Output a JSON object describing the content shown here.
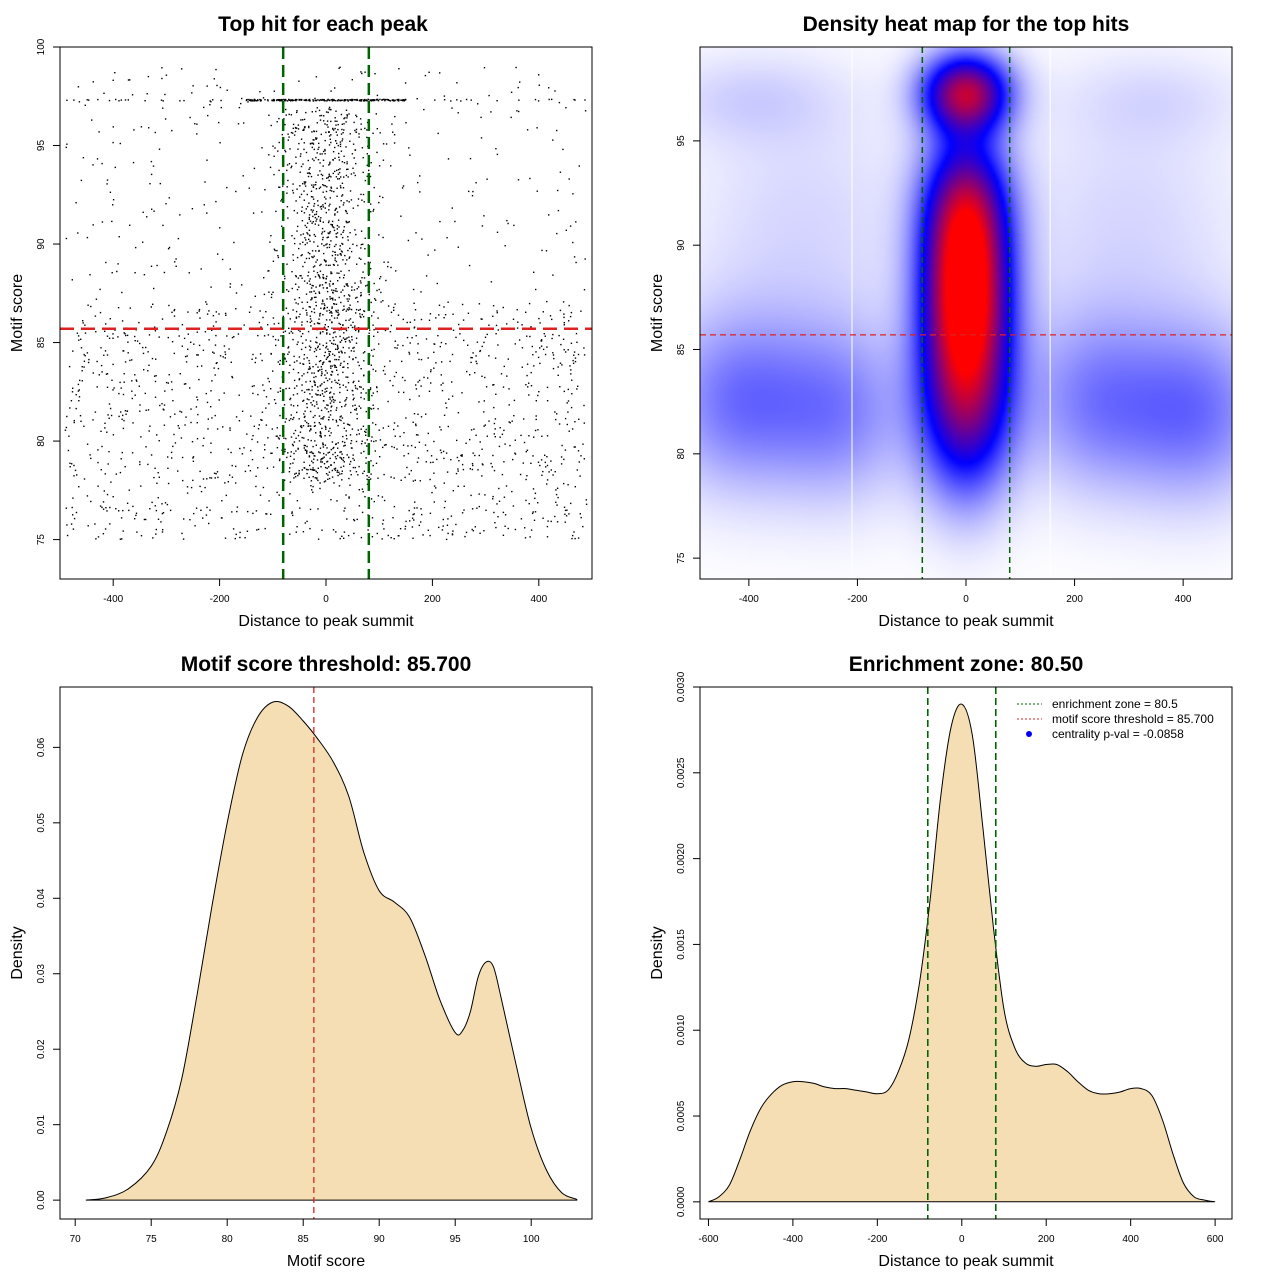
{
  "colors": {
    "threshold_line": "#dd2222",
    "zone_line": "#006400",
    "density_fill": "#f5deb3",
    "heat_low": "#ffffff",
    "heat_mid": "#0000ff",
    "heat_high": "#ff0000",
    "points": "#000000"
  },
  "chart_data": [
    {
      "id": "scatter",
      "type": "scatter",
      "title": "Top hit for each peak",
      "xlabel": "Distance to peak summit",
      "ylabel": "Motif score",
      "xlim": [
        -500,
        500
      ],
      "ylim": [
        73,
        100
      ],
      "xticks": [
        -400,
        -200,
        0,
        200,
        400
      ],
      "yticks": [
        75,
        80,
        85,
        90,
        95,
        100
      ],
      "hlines": [
        85.7
      ],
      "vlines": [
        -80.5,
        80.5
      ],
      "point_groups": [
        {
          "x_range": [
            -490,
            490
          ],
          "y_range": [
            75,
            87
          ],
          "n": 1400
        },
        {
          "x_range": [
            -490,
            490
          ],
          "y_range": [
            87,
            99
          ],
          "n": 350
        },
        {
          "x_center": 0,
          "x_sd": 45,
          "y_range": [
            78,
            97
          ],
          "n": 1300
        },
        {
          "x_range": [
            -150,
            150
          ],
          "y_const": 97.3,
          "n": 220
        },
        {
          "x_range": [
            -490,
            490
          ],
          "y_const": 97.3,
          "n": 50
        }
      ]
    },
    {
      "id": "heatmap",
      "type": "heatmap",
      "title": "Density heat map for the top hits",
      "xlabel": "Distance to peak summit",
      "ylabel": "Motif score",
      "xlim": [
        -490,
        490
      ],
      "ylim": [
        74,
        99.5
      ],
      "xticks": [
        -400,
        -200,
        0,
        200,
        400
      ],
      "yticks": [
        75,
        80,
        85,
        90,
        95
      ],
      "hlines": [
        85.7
      ],
      "vlines": [
        -80.5,
        80.5
      ],
      "white_vlines": [
        -210,
        155
      ],
      "blobs": [
        {
          "x": 0,
          "y": 87.5,
          "sx": 55,
          "sy": 3.2,
          "w": 1.0
        },
        {
          "x": 0,
          "y": 97.3,
          "sx": 55,
          "sy": 1.3,
          "w": 0.8
        },
        {
          "x": 0,
          "y": 92,
          "sx": 55,
          "sy": 2.5,
          "w": 0.55
        },
        {
          "x": 0,
          "y": 82,
          "sx": 60,
          "sy": 3.0,
          "w": 0.55
        },
        {
          "x": -420,
          "y": 82.5,
          "sx": 100,
          "sy": 3.0,
          "w": 0.24
        },
        {
          "x": -230,
          "y": 82.0,
          "sx": 90,
          "sy": 3.0,
          "w": 0.2
        },
        {
          "x": 230,
          "y": 82.5,
          "sx": 90,
          "sy": 3.0,
          "w": 0.2
        },
        {
          "x": 420,
          "y": 82.0,
          "sx": 100,
          "sy": 3.0,
          "w": 0.25
        },
        {
          "x": -300,
          "y": 91.0,
          "sx": 150,
          "sy": 4.5,
          "w": 0.07
        },
        {
          "x": 300,
          "y": 91.0,
          "sx": 150,
          "sy": 4.5,
          "w": 0.07
        },
        {
          "x": -400,
          "y": 97.0,
          "sx": 120,
          "sy": 1.5,
          "w": 0.07
        },
        {
          "x": 350,
          "y": 97.0,
          "sx": 120,
          "sy": 1.5,
          "w": 0.05
        }
      ]
    },
    {
      "id": "score-density",
      "type": "area",
      "title": "Motif score threshold: 85.700",
      "xlabel": "Motif score",
      "ylabel": "Density",
      "xlim": [
        69,
        104
      ],
      "ylim": [
        -0.0025,
        0.068
      ],
      "xticks": [
        70,
        75,
        80,
        85,
        90,
        95,
        100
      ],
      "yticks": [
        0.0,
        0.01,
        0.02,
        0.03,
        0.04,
        0.05,
        0.06
      ],
      "ytick_labels": [
        "0.00",
        "0.01",
        "0.02",
        "0.03",
        "0.04",
        "0.05",
        "0.06"
      ],
      "vlines": [
        85.7
      ],
      "x": [
        70.7,
        72,
        73.5,
        75,
        76,
        77,
        78,
        79,
        80,
        81,
        82,
        83,
        84,
        85,
        86,
        87,
        88,
        89,
        90,
        91,
        92,
        93,
        94,
        95,
        95.5,
        96,
        96.5,
        97,
        97.5,
        98,
        99,
        100,
        101,
        102,
        103
      ],
      "y": [
        0,
        0.0003,
        0.0015,
        0.0045,
        0.009,
        0.016,
        0.027,
        0.039,
        0.05,
        0.059,
        0.064,
        0.066,
        0.0655,
        0.0635,
        0.061,
        0.058,
        0.0535,
        0.046,
        0.041,
        0.0395,
        0.0375,
        0.0325,
        0.0265,
        0.0222,
        0.0225,
        0.025,
        0.0295,
        0.0315,
        0.031,
        0.027,
        0.018,
        0.0095,
        0.004,
        0.001,
        0.0001
      ]
    },
    {
      "id": "distance-density",
      "type": "area",
      "title": "Enrichment zone: 80.50",
      "xlabel": "Distance to peak summit",
      "ylabel": "Density",
      "xlim": [
        -620,
        640
      ],
      "ylim": [
        -0.0001,
        0.003
      ],
      "xticks": [
        -600,
        -400,
        -200,
        0,
        200,
        400,
        600
      ],
      "yticks": [
        0.0,
        0.0005,
        0.001,
        0.0015,
        0.002,
        0.0025,
        0.003
      ],
      "ytick_labels": [
        "0.0000",
        "0.0005",
        "0.0010",
        "0.0015",
        "0.0020",
        "0.0025",
        "0.0030"
      ],
      "vlines": [
        -80.5,
        80.5
      ],
      "x": [
        -600,
        -575,
        -550,
        -525,
        -500,
        -475,
        -450,
        -425,
        -400,
        -375,
        -350,
        -325,
        -300,
        -275,
        -250,
        -225,
        -200,
        -175,
        -150,
        -125,
        -100,
        -75,
        -50,
        -25,
        0,
        25,
        50,
        75,
        100,
        125,
        150,
        175,
        200,
        225,
        250,
        275,
        300,
        325,
        350,
        375,
        400,
        425,
        450,
        475,
        500,
        525,
        550,
        575,
        600
      ],
      "y": [
        0,
        3e-05,
        0.0001,
        0.00025,
        0.00042,
        0.00055,
        0.00063,
        0.00068,
        0.0007,
        0.0007,
        0.00069,
        0.00067,
        0.00066,
        0.00066,
        0.00065,
        0.00064,
        0.00063,
        0.00065,
        0.00076,
        0.00095,
        0.00128,
        0.00176,
        0.00236,
        0.00277,
        0.0029,
        0.00272,
        0.00218,
        0.0016,
        0.00112,
        0.0009,
        0.00081,
        0.00079,
        0.0008,
        0.0008,
        0.00076,
        0.0007,
        0.00065,
        0.00063,
        0.00063,
        0.00064,
        0.00066,
        0.00066,
        0.00062,
        0.00048,
        0.00028,
        0.00011,
        3e-05,
        1e-05,
        0
      ]
    }
  ],
  "legend": {
    "position": "top-right",
    "items": [
      {
        "label": "enrichment zone = 80.5",
        "style": "dotted-line",
        "color": "#006400"
      },
      {
        "label": "motif score threshold = 85.700",
        "style": "dotted-line",
        "color": "#dd2222"
      },
      {
        "label": "centrality p-val = -0.0858",
        "style": "dot",
        "color": "#0000ee"
      }
    ]
  }
}
